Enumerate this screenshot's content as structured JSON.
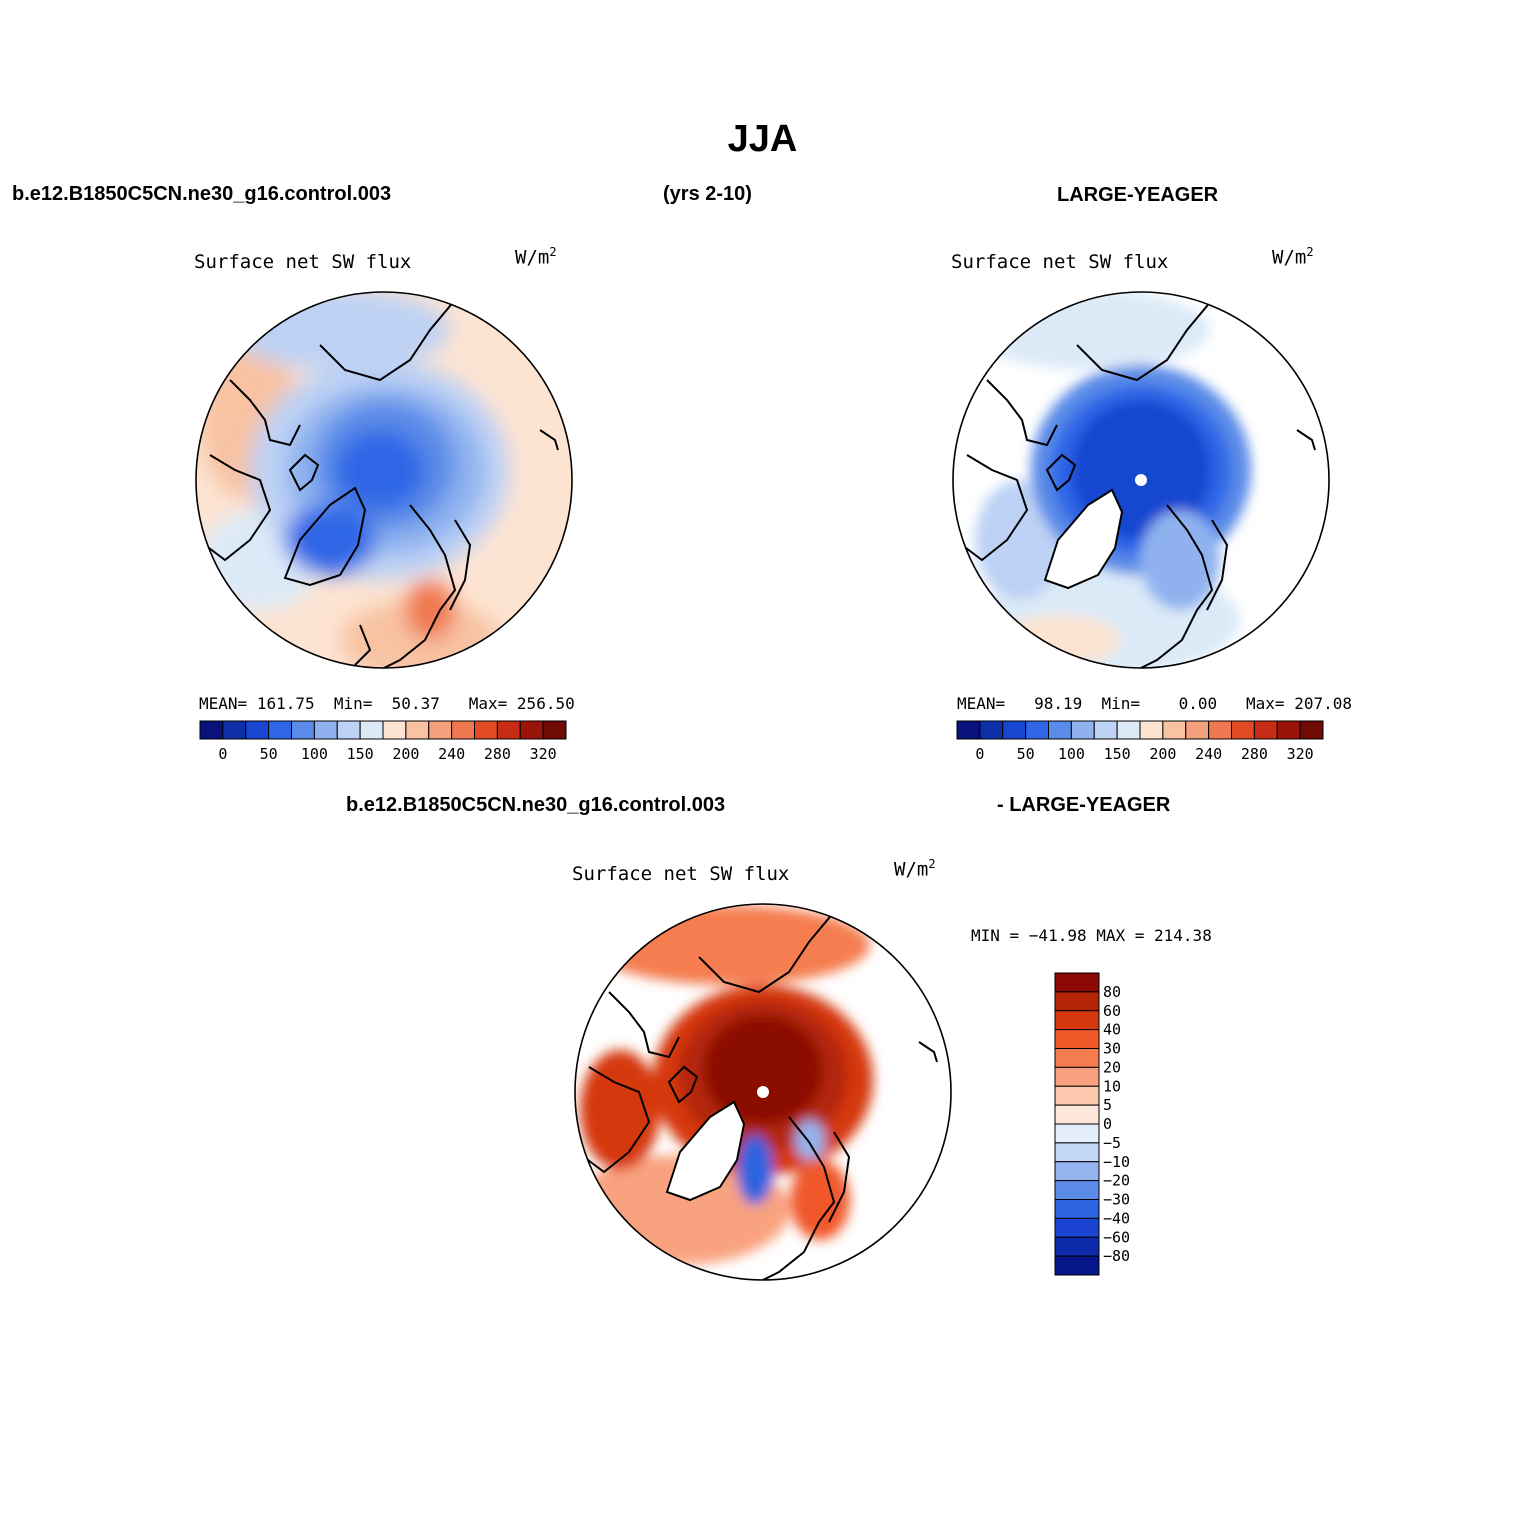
{
  "figure_title": "JJA",
  "top_header": {
    "left": "b.e12.B1850C5CN.ne30_g16.control.003",
    "center": "(yrs 2-10)",
    "right": "LARGE-YEAGER"
  },
  "diff_header": {
    "left": "b.e12.B1850C5CN.ne30_g16.control.003",
    "right": "- LARGE-YEAGER"
  },
  "panels": [
    {
      "id": "case",
      "title": "Surface net SW flux",
      "units": "W/m",
      "units_sup": "2",
      "stats": {
        "mean_label": "MEAN=",
        "mean": "161.75",
        "min_label": "Min=",
        "min": "50.37",
        "max_label": "Max=",
        "max": "256.50"
      },
      "colorbar": {
        "colors": [
          "#08127a",
          "#0d2fa8",
          "#1846d0",
          "#2e66e6",
          "#5a8be8",
          "#8fb2ef",
          "#bdd2f5",
          "#dceaf8",
          "#fde4d2",
          "#f8c2a3",
          "#f3a07c",
          "#ef7850",
          "#e24a23",
          "#c62d14",
          "#9a1409",
          "#700b05"
        ],
        "tick_labels": [
          "0",
          "50",
          "100",
          "150",
          "200",
          "240",
          "280",
          "320"
        ]
      }
    },
    {
      "id": "obs",
      "title": "Surface net SW flux",
      "units": "W/m",
      "units_sup": "2",
      "stats": {
        "mean_label": "MEAN=",
        "mean": "98.19",
        "min_label": "Min=",
        "min": "0.00",
        "max_label": "Max=",
        "max": "207.08"
      },
      "colorbar": {
        "colors": [
          "#08127a",
          "#0d2fa8",
          "#1846d0",
          "#2e66e6",
          "#5a8be8",
          "#8fb2ef",
          "#bdd2f5",
          "#dceaf8",
          "#fde4d2",
          "#f8c2a3",
          "#f3a07c",
          "#ef7850",
          "#e24a23",
          "#c62d14",
          "#9a1409",
          "#700b05"
        ],
        "tick_labels": [
          "0",
          "50",
          "100",
          "150",
          "200",
          "240",
          "280",
          "320"
        ]
      }
    },
    {
      "id": "diff",
      "title": "Surface net SW flux",
      "units": "W/m",
      "units_sup": "2",
      "minmax": "MIN = −41.98 MAX = 214.38",
      "colorbar": {
        "colors_top_to_bottom": [
          "#8b0a05",
          "#b42508",
          "#d6390f",
          "#f0592a",
          "#f57d4f",
          "#f9a27f",
          "#fcc8ad",
          "#fde7da",
          "#e3eefa",
          "#c4d8f6",
          "#93b4ef",
          "#5b8be8",
          "#2f64e0",
          "#1b43d1",
          "#0d2aab",
          "#06178a"
        ],
        "tick_labels": [
          "80",
          "60",
          "40",
          "30",
          "20",
          "10",
          "5",
          "0",
          "−5",
          "−10",
          "−20",
          "−30",
          "−40",
          "−60",
          "−80"
        ]
      }
    }
  ]
}
